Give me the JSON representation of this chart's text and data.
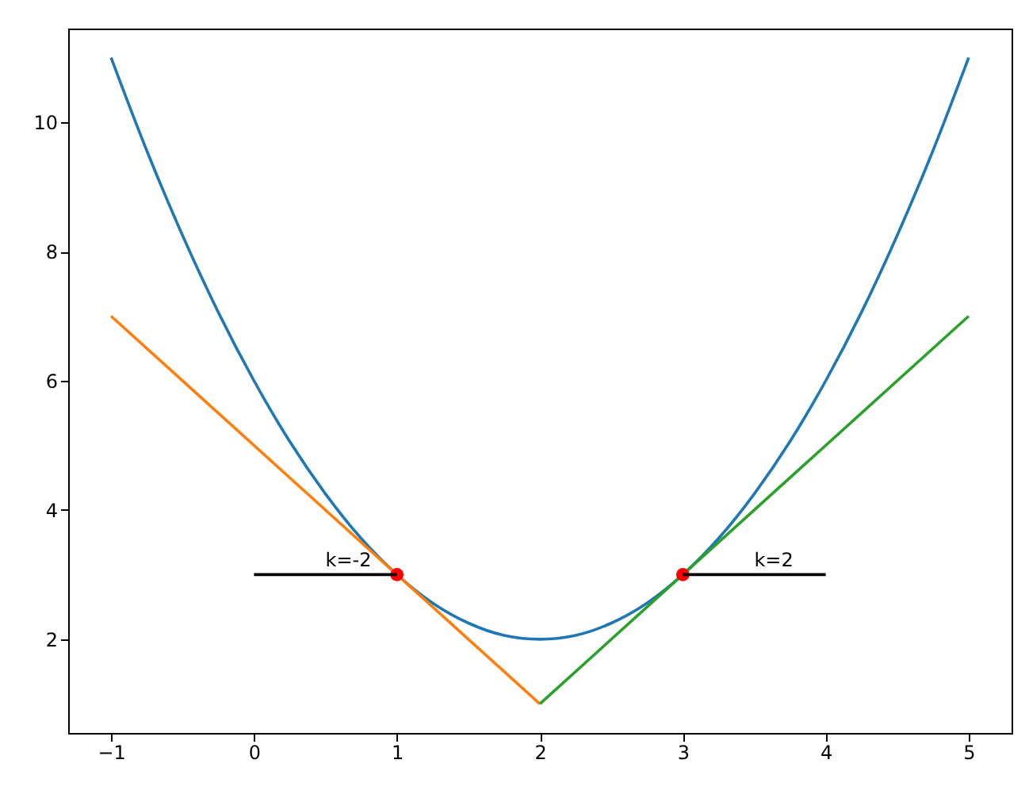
{
  "chart_data": {
    "type": "line",
    "xlim": [
      -1.3,
      5.3
    ],
    "ylim": [
      0.55,
      11.45
    ],
    "xticks": [
      -1,
      0,
      1,
      2,
      3,
      4,
      5
    ],
    "yticks": [
      2,
      4,
      6,
      8,
      10
    ],
    "grid": false,
    "series": [
      {
        "color": "#1f77b4",
        "marker": "none",
        "x": [
          -1,
          -0.75,
          -0.5,
          -0.25,
          0,
          0.25,
          0.5,
          0.75,
          1,
          1.25,
          1.5,
          1.75,
          2,
          2.25,
          2.5,
          2.75,
          3,
          3.25,
          3.5,
          3.75,
          4,
          4.25,
          4.5,
          4.75,
          5
        ],
        "values": [
          11,
          9.56,
          8.25,
          7.06,
          6,
          5.06,
          4.25,
          3.56,
          3,
          2.56,
          2.25,
          2.06,
          2,
          2.06,
          2.25,
          2.56,
          3,
          3.56,
          4.25,
          5.06,
          6,
          7.06,
          8.25,
          9.56,
          11
        ]
      },
      {
        "color": "#ff7f0e",
        "marker": "none",
        "x": [
          -1,
          2
        ],
        "values": [
          7,
          1
        ]
      },
      {
        "color": "#2ca02c",
        "marker": "none",
        "x": [
          2,
          5
        ],
        "values": [
          1,
          7
        ]
      },
      {
        "type": "scatter",
        "color": "#ff0000",
        "marker": "circle",
        "x": [
          1,
          3
        ],
        "values": [
          3,
          3
        ]
      },
      {
        "color": "#000000",
        "marker": "none",
        "x": [
          1,
          0
        ],
        "values": [
          3,
          3
        ]
      },
      {
        "color": "#000000",
        "marker": "none",
        "x": [
          3,
          4
        ],
        "values": [
          3,
          3
        ]
      }
    ],
    "annotations": [
      {
        "text": "k=-2",
        "x": 0.5,
        "y": 3
      },
      {
        "text": "k=2",
        "x": 3.5,
        "y": 3
      }
    ]
  }
}
